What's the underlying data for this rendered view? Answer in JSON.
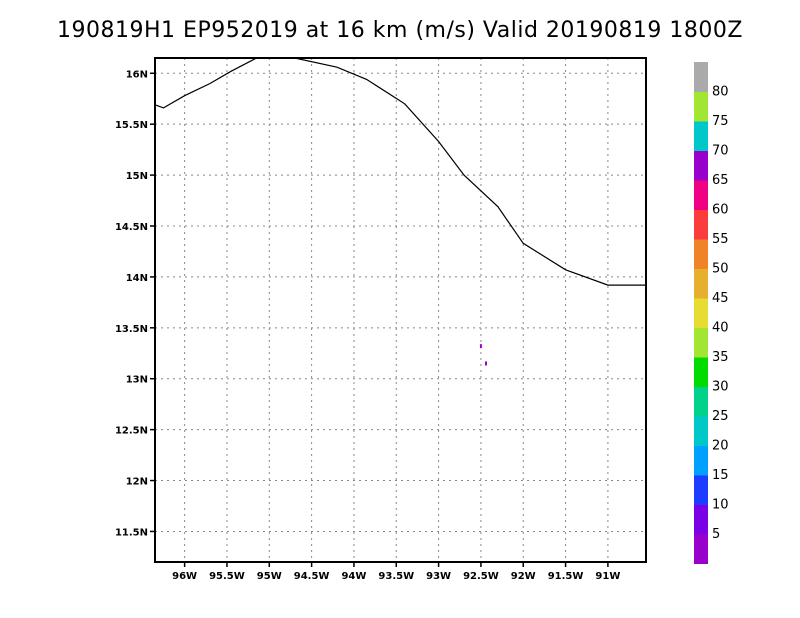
{
  "title": "190819H1 EP952019 at 16 km (m/s) Valid 20190819 1800Z",
  "chart_data": {
    "type": "heatmap",
    "title": "190819H1 EP952019 at 16 km (m/s) Valid 20190819 1800Z",
    "units": "m/s",
    "xlim": [
      -96.35,
      -90.55
    ],
    "ylim": [
      11.2,
      16.15
    ],
    "grid": true,
    "x_ticks": [
      {
        "v": -96.0,
        "label": "96W"
      },
      {
        "v": -95.5,
        "label": "95.5W"
      },
      {
        "v": -95.0,
        "label": "95W"
      },
      {
        "v": -94.5,
        "label": "94.5W"
      },
      {
        "v": -94.0,
        "label": "94W"
      },
      {
        "v": -93.5,
        "label": "93.5W"
      },
      {
        "v": -93.0,
        "label": "93W"
      },
      {
        "v": -92.5,
        "label": "92.5W"
      },
      {
        "v": -92.0,
        "label": "92W"
      },
      {
        "v": -91.5,
        "label": "91.5W"
      },
      {
        "v": -91.0,
        "label": "91W"
      }
    ],
    "y_ticks": [
      {
        "v": 11.5,
        "label": "11.5N"
      },
      {
        "v": 12.0,
        "label": "12N"
      },
      {
        "v": 12.5,
        "label": "12.5N"
      },
      {
        "v": 13.0,
        "label": "13N"
      },
      {
        "v": 13.5,
        "label": "13.5N"
      },
      {
        "v": 14.0,
        "label": "14N"
      },
      {
        "v": 14.5,
        "label": "14.5N"
      },
      {
        "v": 15.0,
        "label": "15N"
      },
      {
        "v": 15.5,
        "label": "15.5N"
      },
      {
        "v": 16.0,
        "label": "16N"
      }
    ],
    "coastline": [
      [
        -96.35,
        15.69
      ],
      [
        -96.25,
        15.66
      ],
      [
        -96.0,
        15.78
      ],
      [
        -95.7,
        15.9
      ],
      [
        -95.45,
        16.02
      ],
      [
        -95.15,
        16.15
      ],
      [
        -94.7,
        16.15
      ],
      [
        -94.2,
        16.06
      ],
      [
        -93.85,
        15.94
      ],
      [
        -93.4,
        15.7
      ],
      [
        -93.0,
        15.33
      ],
      [
        -92.7,
        15.0
      ],
      [
        -92.3,
        14.69
      ],
      [
        -92.0,
        14.33
      ],
      [
        -91.5,
        14.07
      ],
      [
        -91.0,
        13.92
      ],
      [
        -90.55,
        13.92
      ]
    ],
    "features": [
      {
        "lon": -92.5,
        "lat": 13.32,
        "value": 3
      },
      {
        "lon": -92.44,
        "lat": 13.15,
        "value": 4
      }
    ],
    "colorbar": {
      "labels": [
        "5",
        "10",
        "15",
        "20",
        "25",
        "30",
        "35",
        "40",
        "45",
        "50",
        "55",
        "60",
        "65",
        "70",
        "75",
        "80"
      ],
      "colors": [
        "#9900cc",
        "#7a00e6",
        "#1e3cff",
        "#00a0ff",
        "#00c8c8",
        "#00d28c",
        "#00dc00",
        "#a0e632",
        "#e6dc32",
        "#e6af2d",
        "#f08228",
        "#fa3c3c",
        "#f00082",
        "#9900cc",
        "#00c8c8",
        "#a0e632",
        "#aaaaaa"
      ]
    }
  }
}
